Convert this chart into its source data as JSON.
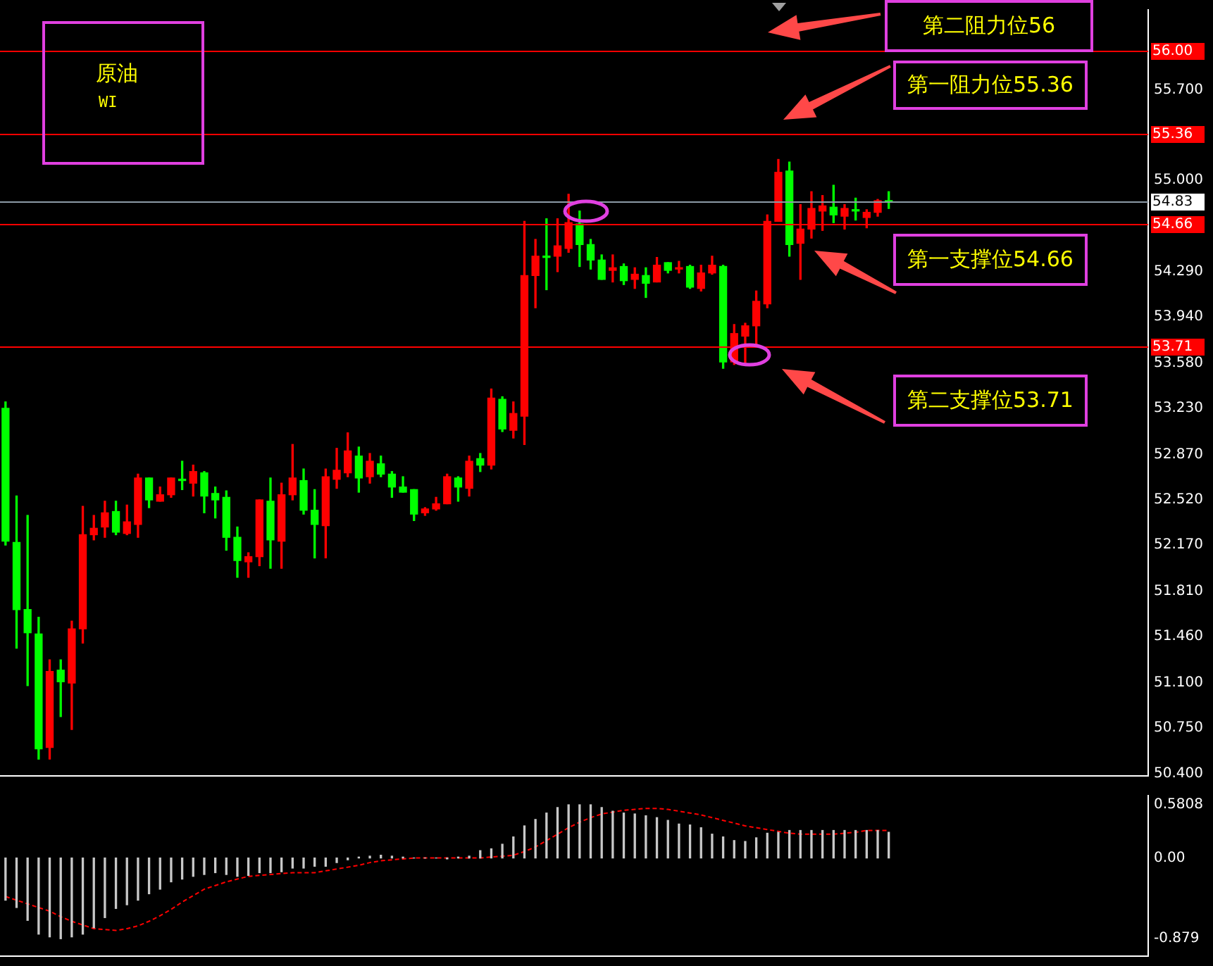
{
  "chart_data": [
    {
      "type": "candlestick",
      "title": "原油",
      "subtitle": "WI",
      "annotations": [
        "第二阻力位56",
        "第一阻力位55.36",
        "第一支撑位54.66",
        "第二支撑位53.71"
      ],
      "categories": [
        null,
        null,
        null,
        null,
        null,
        null,
        null,
        null,
        null,
        null,
        null,
        null,
        null,
        null,
        null,
        null,
        null,
        null,
        null,
        null,
        null,
        null,
        null,
        null,
        null,
        null,
        null,
        null,
        null,
        null,
        null,
        null,
        null,
        null,
        null,
        null,
        null,
        null,
        null,
        null,
        null,
        null,
        null,
        null,
        null,
        null,
        null,
        null,
        null,
        null,
        null,
        null,
        null,
        null,
        null,
        null,
        null,
        null,
        null,
        null,
        null,
        null,
        null,
        null,
        null,
        null,
        null,
        null,
        null,
        null,
        null,
        null,
        null,
        null,
        null,
        null,
        null,
        null,
        null,
        null,
        null,
        null,
        null,
        null,
        null,
        null,
        null,
        null,
        null,
        null,
        null,
        null,
        null,
        null,
        null,
        null,
        null,
        null,
        null,
        null,
        null,
        null,
        null,
        null
      ],
      "ohlc": [
        [
          53.23,
          53.28,
          52.17,
          52.2
        ],
        [
          52.19,
          52.55,
          51.37,
          51.67
        ],
        [
          51.67,
          52.4,
          51.08,
          51.49
        ],
        [
          51.48,
          51.61,
          50.51,
          50.59
        ],
        [
          50.6,
          51.28,
          50.51,
          51.19
        ],
        [
          51.2,
          51.28,
          50.84,
          51.11
        ],
        [
          51.1,
          51.58,
          50.74,
          51.52
        ],
        [
          51.52,
          52.47,
          51.41,
          52.25
        ],
        [
          52.25,
          52.4,
          52.21,
          52.3
        ],
        [
          52.31,
          52.51,
          52.23,
          52.42
        ],
        [
          52.43,
          52.51,
          52.25,
          52.27
        ],
        [
          52.26,
          52.48,
          52.25,
          52.35
        ],
        [
          52.33,
          52.72,
          52.23,
          52.69
        ],
        [
          52.69,
          52.69,
          52.46,
          52.52
        ],
        [
          52.51,
          52.62,
          52.51,
          52.56
        ],
        [
          52.56,
          52.69,
          52.54,
          52.69
        ],
        [
          52.68,
          52.82,
          52.6,
          52.67
        ],
        [
          52.65,
          52.79,
          52.55,
          52.74
        ],
        [
          52.73,
          52.74,
          52.42,
          52.55
        ],
        [
          52.57,
          52.62,
          52.38,
          52.52
        ],
        [
          52.54,
          52.59,
          52.13,
          52.23
        ],
        [
          52.23,
          52.31,
          51.92,
          52.05
        ],
        [
          52.04,
          52.11,
          51.92,
          52.08
        ],
        [
          52.08,
          52.52,
          52.01,
          52.52
        ],
        [
          52.51,
          52.69,
          51.99,
          52.21
        ],
        [
          52.2,
          52.65,
          51.99,
          52.56
        ],
        [
          52.56,
          52.95,
          52.52,
          52.69
        ],
        [
          52.67,
          52.76,
          52.41,
          52.44
        ],
        [
          52.44,
          52.6,
          52.07,
          52.33
        ],
        [
          52.32,
          52.76,
          52.07,
          52.7
        ],
        [
          52.68,
          52.92,
          52.61,
          52.75
        ],
        [
          52.73,
          53.04,
          52.7,
          52.9
        ],
        [
          52.86,
          52.93,
          52.58,
          52.69
        ],
        [
          52.7,
          52.88,
          52.65,
          52.82
        ],
        [
          52.8,
          52.86,
          52.7,
          52.72
        ],
        [
          52.72,
          52.74,
          52.54,
          52.62
        ],
        [
          52.62,
          52.7,
          52.58,
          52.58
        ],
        [
          52.6,
          52.6,
          52.36,
          52.41
        ],
        [
          52.42,
          52.46,
          52.4,
          52.45
        ],
        [
          52.45,
          52.54,
          52.44,
          52.49
        ],
        [
          52.49,
          52.72,
          52.49,
          52.7
        ],
        [
          52.69,
          52.7,
          52.51,
          52.62
        ],
        [
          52.61,
          52.86,
          52.55,
          52.82
        ],
        [
          52.84,
          52.88,
          52.74,
          52.79
        ],
        [
          52.79,
          53.38,
          52.76,
          53.31
        ],
        [
          53.3,
          53.32,
          53.05,
          53.07
        ],
        [
          53.06,
          53.28,
          53.0,
          53.19
        ],
        [
          53.17,
          54.68,
          52.95,
          54.26
        ],
        [
          54.26,
          54.54,
          54.01,
          54.41
        ],
        [
          54.41,
          54.7,
          54.15,
          54.4
        ],
        [
          54.41,
          54.7,
          54.29,
          54.49
        ],
        [
          54.47,
          54.89,
          54.44,
          54.67
        ],
        [
          54.66,
          54.76,
          54.33,
          54.5
        ],
        [
          54.5,
          54.54,
          54.31,
          54.38
        ],
        [
          54.38,
          54.42,
          54.23,
          54.23
        ],
        [
          54.3,
          54.42,
          54.21,
          54.32
        ],
        [
          54.33,
          54.35,
          54.19,
          54.22
        ],
        [
          54.23,
          54.32,
          54.16,
          54.27
        ],
        [
          54.26,
          54.32,
          54.09,
          54.2
        ],
        [
          54.21,
          54.4,
          54.21,
          54.34
        ],
        [
          54.36,
          54.36,
          54.28,
          54.3
        ],
        [
          54.31,
          54.37,
          54.28,
          54.32
        ],
        [
          54.33,
          54.34,
          54.16,
          54.17
        ],
        [
          54.16,
          54.34,
          54.14,
          54.28
        ],
        [
          54.28,
          54.41,
          54.27,
          54.34
        ],
        [
          54.33,
          54.34,
          53.54,
          53.59
        ],
        [
          53.59,
          53.88,
          53.57,
          53.81
        ],
        [
          53.79,
          53.89,
          53.57,
          53.87
        ],
        [
          53.87,
          54.14,
          53.72,
          54.06
        ],
        [
          54.04,
          54.73,
          54.01,
          54.68
        ],
        [
          54.68,
          55.16,
          54.68,
          55.06
        ],
        [
          55.07,
          55.14,
          54.41,
          54.5
        ],
        [
          54.51,
          54.81,
          54.23,
          54.62
        ],
        [
          54.62,
          54.91,
          54.55,
          54.78
        ],
        [
          54.76,
          54.88,
          54.61,
          54.8
        ],
        [
          54.79,
          54.96,
          54.67,
          54.73
        ],
        [
          54.72,
          54.81,
          54.62,
          54.78
        ],
        [
          54.77,
          54.86,
          54.69,
          54.76
        ],
        [
          54.71,
          54.77,
          54.63,
          54.75
        ],
        [
          54.75,
          54.85,
          54.72,
          54.84
        ],
        [
          54.84,
          54.91,
          54.78,
          54.83
        ],
        null,
        null,
        null,
        null,
        null,
        null,
        null,
        null,
        null,
        null,
        null,
        null,
        null,
        null,
        null,
        null,
        null,
        null,
        null,
        null,
        null,
        null,
        null
      ],
      "colors": [
        "#00ff00",
        "#00ff00",
        "#00ff00",
        "#00ff00",
        "#ff0000",
        "#00ff00",
        "#ff0000",
        "#ff0000",
        "#ff0000",
        "#ff0000",
        "#00ff00",
        "#ff0000",
        "#ff0000",
        "#00ff00",
        "#ff0000",
        "#ff0000",
        "#00ff00",
        "#ff0000",
        "#00ff00",
        "#00ff00",
        "#00ff00",
        "#00ff00",
        "#ff0000",
        "#ff0000",
        "#00ff00",
        "#ff0000",
        "#ff0000",
        "#00ff00",
        "#00ff00",
        "#ff0000",
        "#ff0000",
        "#ff0000",
        "#00ff00",
        "#ff0000",
        "#00ff00",
        "#00ff00",
        "#00ff00",
        "#00ff00",
        "#ff0000",
        "#ff0000",
        "#ff0000",
        "#00ff00",
        "#ff0000",
        "#00ff00",
        "#ff0000",
        "#00ff00",
        "#ff0000",
        "#ff0000",
        "#ff0000",
        "#00ff00",
        "#ff0000",
        "#ff0000",
        "#00ff00",
        "#00ff00",
        "#00ff00",
        "#ff0000",
        "#00ff00",
        "#ff0000",
        "#00ff00",
        "#ff0000",
        "#00ff00",
        "#ff0000",
        "#00ff00",
        "#ff0000",
        "#ff0000",
        "#00ff00",
        "#ff0000",
        "#ff0000",
        "#ff0000",
        "#ff0000",
        "#ff0000",
        "#00ff00",
        "#ff0000",
        "#ff0000",
        "#ff0000",
        "#00ff00",
        "#ff0000",
        "#00ff00",
        "#ff0000",
        "#ff0000",
        "#00ff00",
        null,
        null,
        null,
        null,
        null,
        null,
        null,
        null,
        null,
        null,
        null,
        null,
        null,
        null,
        null,
        null,
        null,
        null,
        null,
        null,
        null,
        null,
        null
      ],
      "ylim": [
        50.38,
        56.32
      ],
      "yticks": [
        {
          "value": 50.4,
          "label": "50.400"
        },
        {
          "value": 50.75,
          "label": "50.750"
        },
        {
          "value": 51.1,
          "label": "51.100"
        },
        {
          "value": 51.46,
          "label": "51.460"
        },
        {
          "value": 51.81,
          "label": "51.810"
        },
        {
          "value": 52.17,
          "label": "52.170"
        },
        {
          "value": 52.52,
          "label": "52.520"
        },
        {
          "value": 52.87,
          "label": "52.870"
        },
        {
          "value": 53.23,
          "label": "53.230"
        },
        {
          "value": 53.58,
          "label": "53.580"
        },
        {
          "value": 53.94,
          "label": "53.940"
        },
        {
          "value": 54.29,
          "label": "54.290"
        },
        {
          "value": 54.64,
          "label": null
        },
        {
          "value": 55,
          "label": "55.000"
        },
        {
          "value": 55.35,
          "label": null
        },
        {
          "value": 55.7,
          "label": "55.700"
        }
      ],
      "ref_lines": [
        {
          "axis": "y",
          "value": 56,
          "label": "56.00",
          "color": "#ff0000"
        },
        {
          "axis": "y",
          "value": 55.36,
          "label": "55.36",
          "color": "#ff0000"
        },
        {
          "axis": "y",
          "value": 54.83,
          "label": "54.83",
          "color": "#8c9aa6"
        },
        {
          "axis": "y",
          "value": 54.66,
          "label": "54.66",
          "color": "#ff0000"
        },
        {
          "axis": "y",
          "value": 53.71,
          "label": "53.71",
          "color": "#ff0000"
        }
      ]
    },
    {
      "type": "bar",
      "categories": [
        null,
        null,
        null,
        null,
        null,
        null,
        null,
        null,
        null,
        null,
        null,
        null,
        null,
        null,
        null,
        null,
        null,
        null,
        null,
        null,
        null,
        null,
        null,
        null,
        null,
        null,
        null,
        null,
        null,
        null,
        null,
        null,
        null,
        null,
        null,
        null,
        null,
        null,
        null,
        null,
        null,
        null,
        null,
        null,
        null,
        null,
        null,
        null,
        null,
        null,
        null,
        null,
        null,
        null,
        null,
        null,
        null,
        null,
        null,
        null,
        null,
        null,
        null,
        null,
        null,
        null,
        null,
        null,
        null,
        null,
        null,
        null,
        null,
        null,
        null,
        null,
        null,
        null,
        null,
        null,
        null,
        null,
        null,
        null,
        null,
        null,
        null,
        null,
        null,
        null,
        null,
        null,
        null,
        null,
        null,
        null,
        null,
        null,
        null,
        null,
        null,
        null,
        null,
        null
      ],
      "series": [
        {
          "color": "#c8c8c8",
          "values": [
            -0.46,
            -0.54,
            -0.68,
            -0.83,
            -0.86,
            -0.88,
            -0.86,
            -0.83,
            -0.76,
            -0.65,
            -0.55,
            -0.51,
            -0.46,
            -0.39,
            -0.34,
            -0.26,
            -0.23,
            -0.2,
            -0.18,
            -0.16,
            -0.18,
            -0.2,
            -0.19,
            -0.16,
            -0.16,
            -0.15,
            -0.11,
            -0.11,
            -0.09,
            -0.09,
            -0.05,
            -0.02,
            0.01,
            0.02,
            0.03,
            0.02,
            0.01,
            0.0,
            0.0,
            0.0,
            -0.01,
            0.01,
            0.02,
            0.08,
            0.1,
            0.15,
            0.23,
            0.35,
            0.42,
            0.49,
            0.55,
            0.58,
            0.58,
            0.58,
            0.55,
            0.51,
            0.49,
            0.48,
            0.46,
            0.44,
            0.41,
            0.37,
            0.36,
            0.33,
            0.26,
            0.23,
            0.19,
            0.18,
            0.22,
            0.27,
            0.28,
            0.3,
            0.3,
            0.3,
            0.3,
            0.3,
            0.3,
            0.3,
            0.3,
            0.3,
            0.28,
            null,
            null,
            null,
            null,
            null,
            null,
            null,
            null,
            null,
            null,
            null,
            null,
            null,
            null,
            null,
            null,
            null,
            null,
            null,
            null,
            null,
            null,
            null
          ]
        },
        {
          "type": "line",
          "color": "#ff0000",
          "line_style": "dashed",
          "marker": "none",
          "values": [
            -0.42,
            -0.46,
            -0.5,
            -0.54,
            -0.58,
            -0.64,
            -0.69,
            -0.73,
            -0.77,
            -0.78,
            -0.79,
            -0.77,
            -0.74,
            -0.69,
            -0.63,
            -0.56,
            -0.48,
            -0.41,
            -0.34,
            -0.3,
            -0.26,
            -0.23,
            -0.2,
            -0.19,
            -0.18,
            -0.17,
            -0.16,
            -0.16,
            -0.16,
            -0.14,
            -0.12,
            -0.1,
            -0.08,
            -0.05,
            -0.03,
            -0.02,
            -0.01,
            0.0,
            0.0,
            0.0,
            0.0,
            0.0,
            0.0,
            0.0,
            0.01,
            0.02,
            0.03,
            0.07,
            0.12,
            0.19,
            0.26,
            0.33,
            0.39,
            0.44,
            0.48,
            0.5,
            0.52,
            0.53,
            0.54,
            0.54,
            0.53,
            0.51,
            0.49,
            0.47,
            0.44,
            0.41,
            0.38,
            0.35,
            0.33,
            0.31,
            0.29,
            0.27,
            0.26,
            0.26,
            0.26,
            0.26,
            0.27,
            0.28,
            0.3,
            0.3,
            0.3,
            null,
            null,
            null,
            null,
            null,
            null,
            null,
            null,
            null,
            null,
            null,
            null,
            null,
            null,
            null,
            null,
            null,
            null,
            null,
            null,
            null,
            null,
            null
          ]
        }
      ],
      "ylim": [
        -1.07,
        0.68
      ],
      "yticks": [
        {
          "value": 0.5808,
          "label": "0.5808"
        },
        {
          "value": 0,
          "label": "0.00"
        },
        {
          "value": -0.879,
          "label": "-0.879"
        }
      ]
    }
  ]
}
